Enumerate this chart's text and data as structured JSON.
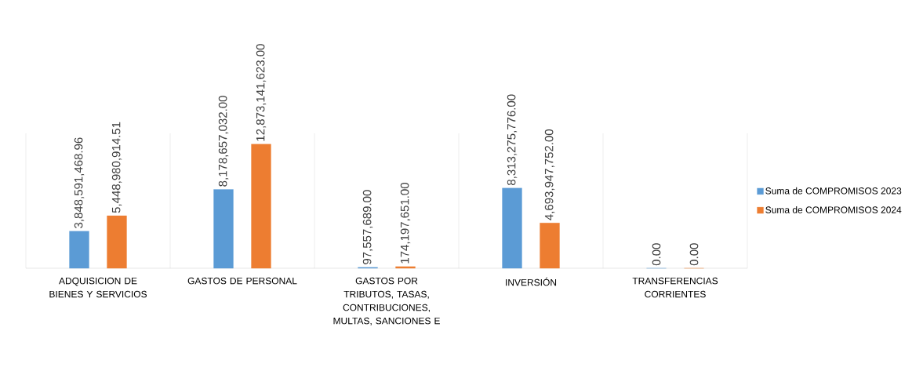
{
  "chart_data": {
    "type": "bar",
    "categories": [
      "ADQUISICION DE BIENES Y SERVICIOS",
      "GASTOS DE PERSONAL",
      "GASTOS POR TRIBUTOS, TASAS, CONTRIBUCIONES, MULTAS, SANCIONES E",
      "INVERSIÓN",
      "TRANSFERENCIAS CORRIENTES"
    ],
    "series": [
      {
        "name": "Suma de COMPROMISOS 2023",
        "color": "#5b9bd5",
        "values": [
          3848591468.96,
          8178657032.0,
          97557689.0,
          8313275776.0,
          0.0
        ],
        "value_labels": [
          "3,848,591,468.96",
          "8,178,657,032.00",
          "97,557,689.00",
          "8,313,275,776.00",
          "0.00"
        ]
      },
      {
        "name": "Suma de COMPROMISOS 2024",
        "color": "#ed7d31",
        "values": [
          5448980914.51,
          12873141623.0,
          174197651.0,
          4693947752.0,
          0.0
        ],
        "value_labels": [
          "5,448,980,914.51",
          "12,873,141,623.00",
          "174,197,651.00",
          "4,693,947,752.00",
          "0.00"
        ]
      }
    ],
    "ylim": [
      0,
      14000000000
    ],
    "grid": "x",
    "legend": "right"
  }
}
